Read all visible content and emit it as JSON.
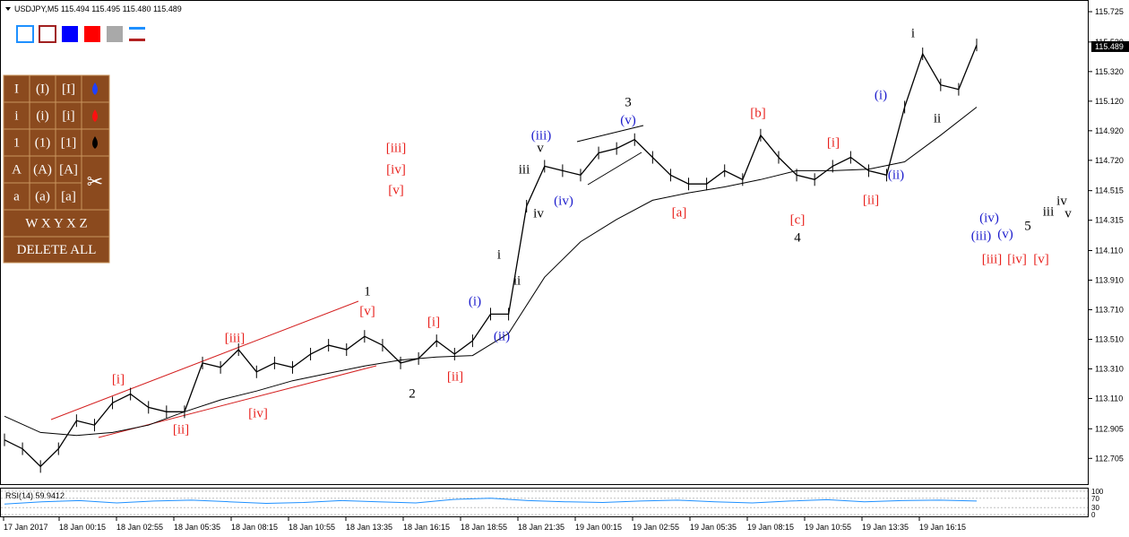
{
  "header": {
    "symbol_info": "USDJPY,M5  115.494 115.495 115.480 115.489"
  },
  "toolbar": {
    "rows": [
      [
        "I",
        "(I)",
        "[I]"
      ],
      [
        "i",
        "(i)",
        "[i]"
      ],
      [
        "1",
        "(1)",
        "[1]"
      ],
      [
        "A",
        "(A)",
        "[A]"
      ],
      [
        "a",
        "(a)",
        "[a]"
      ]
    ],
    "wxyxz": "W X Y X Z",
    "delete_all": "DELETE ALL"
  },
  "chart_data": {
    "type": "line",
    "series": [
      {
        "color": "#000000",
        "values": [
          112.83,
          112.77,
          112.65,
          112.77,
          112.96,
          112.93,
          113.08,
          113.14,
          113.05,
          113.02,
          113.02,
          113.35,
          113.32,
          113.44,
          113.29,
          113.35,
          113.32,
          113.41,
          113.47,
          113.44,
          113.53,
          113.47,
          113.35,
          113.38,
          113.5,
          113.41,
          113.5,
          113.68,
          113.68,
          114.41,
          114.68,
          114.65,
          114.62,
          114.77,
          114.8,
          114.86,
          114.74,
          114.62,
          114.56,
          114.56,
          114.65,
          114.59,
          114.89,
          114.74,
          114.62,
          114.59,
          114.68,
          114.74,
          114.65,
          114.62,
          115.08,
          115.44,
          115.23,
          115.2,
          115.5
        ]
      },
      {
        "color": "#000000",
        "values": [
          112.99,
          112.88,
          112.86,
          112.88,
          112.93,
          113.02,
          113.1,
          113.16,
          113.23,
          113.28,
          113.33,
          113.37,
          113.39,
          113.4,
          113.55,
          113.93,
          114.17,
          114.32,
          114.45,
          114.5,
          114.54,
          114.59,
          114.65,
          114.65,
          114.66,
          114.71,
          114.89,
          115.08
        ]
      }
    ],
    "ylim": [
      112.531,
      115.804
    ],
    "yticks": [
      115.725,
      {
        "value": 115.52,
        "label": "115.520"
      },
      {
        "value": 115.32,
        "label": "115.320"
      },
      {
        "value": 115.12,
        "label": "115.120"
      },
      {
        "value": 114.92,
        "label": "114.920"
      },
      {
        "value": 114.72,
        "label": "114.720"
      },
      114.515,
      {
        "value": 114.315,
        "label": "114.315"
      },
      {
        "value": 114.11,
        "label": "114.110"
      },
      {
        "value": 113.91,
        "label": "113.910"
      },
      {
        "value": 113.71,
        "label": "113.710"
      },
      {
        "value": 113.51,
        "label": "113.510"
      },
      {
        "value": 113.31,
        "label": "113.310"
      },
      {
        "value": 113.11,
        "label": "113.110"
      },
      112.905,
      112.705
    ],
    "current_price": 115.489,
    "xtick_labels": [
      "17 Jan 2017",
      "18 Jan 00:15",
      "18 Jan 02:55",
      "18 Jan 05:35",
      "18 Jan 08:15",
      "18 Jan 10:55",
      "18 Jan 13:35",
      "18 Jan 16:15",
      "18 Jan 18:55",
      "18 Jan 21:35",
      "19 Jan 00:15",
      "19 Jan 02:55",
      "19 Jan 05:35",
      "19 Jan 08:15",
      "19 Jan 10:55",
      "19 Jan 13:35",
      "19 Jan 16:15"
    ]
  },
  "rsi": {
    "label": "RSI(14) 59.9412",
    "ylim": [
      0,
      100
    ],
    "yticks": [
      100,
      70,
      30,
      0
    ],
    "color": "#1e90ff",
    "values": [
      45,
      55,
      60,
      50,
      58,
      62,
      55,
      48,
      52,
      60,
      55,
      50,
      65,
      70,
      60,
      55,
      52,
      58,
      62,
      55,
      50,
      58,
      64,
      55,
      60,
      62,
      58
    ]
  },
  "wave_labels": [
    {
      "text": "1",
      "color": "#000000"
    },
    {
      "text": "[v]",
      "color": "#e8201c"
    },
    {
      "text": "[iii]",
      "color": "#e8201c"
    },
    {
      "text": "[i]",
      "color": "#e8201c"
    },
    {
      "text": "[ii]",
      "color": "#e8201c"
    },
    {
      "text": "[iv]",
      "color": "#e8201c"
    },
    {
      "text": "2",
      "color": "#000000"
    },
    {
      "text": "[i]",
      "color": "#e8201c"
    },
    {
      "text": "[ii]",
      "color": "#e8201c"
    },
    {
      "text": "(i)",
      "color": "#1a1acc"
    },
    {
      "text": "(ii)",
      "color": "#1a1acc"
    },
    {
      "text": "i",
      "color": "#000000"
    },
    {
      "text": "ii",
      "color": "#000000"
    },
    {
      "text": "iii",
      "color": "#000000"
    },
    {
      "text": "iv",
      "color": "#000000"
    },
    {
      "text": "v",
      "color": "#000000"
    },
    {
      "text": "(iii)",
      "color": "#1a1acc"
    },
    {
      "text": "(iv)",
      "color": "#1a1acc"
    },
    {
      "text": "3",
      "color": "#000000"
    },
    {
      "text": "(v)",
      "color": "#1a1acc"
    },
    {
      "text": "[a]",
      "color": "#e8201c"
    },
    {
      "text": "[b]",
      "color": "#e8201c"
    },
    {
      "text": "[c]",
      "color": "#e8201c"
    },
    {
      "text": "4",
      "color": "#000000"
    },
    {
      "text": "[i]",
      "color": "#e8201c"
    },
    {
      "text": "[ii]",
      "color": "#e8201c"
    },
    {
      "text": "(i)",
      "color": "#1a1acc"
    },
    {
      "text": "(ii)",
      "color": "#1a1acc"
    },
    {
      "text": "i",
      "color": "#000000"
    },
    {
      "text": "ii",
      "color": "#000000"
    },
    {
      "text": "[iii]",
      "color": "#e8201c"
    },
    {
      "text": "[iv]",
      "color": "#e8201c"
    },
    {
      "text": "[v]",
      "color": "#e8201c"
    },
    {
      "text": "(iv)",
      "color": "#1a1acc"
    },
    {
      "text": "(iii)",
      "color": "#1a1acc"
    },
    {
      "text": "(v)",
      "color": "#1a1acc"
    },
    {
      "text": "5",
      "color": "#000000"
    },
    {
      "text": "iii",
      "color": "#000000"
    },
    {
      "text": "iv",
      "color": "#000000"
    },
    {
      "text": "v",
      "color": "#000000"
    },
    {
      "text": "[iii]",
      "color": "#e8201c"
    },
    {
      "text": "[iv]",
      "color": "#e8201c"
    },
    {
      "text": "[v]",
      "color": "#e8201c"
    }
  ]
}
